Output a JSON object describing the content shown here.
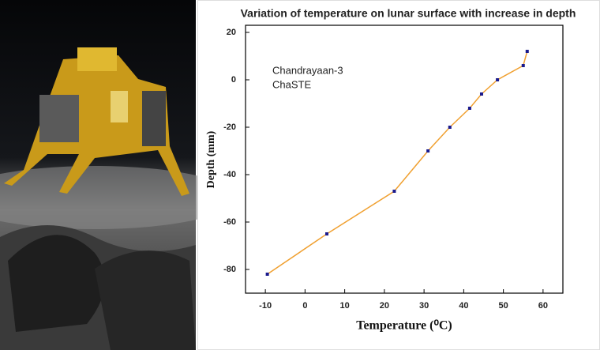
{
  "chart_data": {
    "type": "line",
    "title": "Variation of temperature on lunar surface with increase in depth",
    "annotations": [
      "Chandrayaan-3",
      "ChaSTE"
    ],
    "x_label": "Temperature (⁰C)",
    "y_label": "Depth (mm)",
    "x": [
      -9.5,
      5.5,
      22.5,
      31,
      36.5,
      41.5,
      44.5,
      48.5,
      55,
      56
    ],
    "values": [
      -82,
      -65,
      -47,
      -30,
      -20,
      -12,
      -6,
      0,
      6,
      12
    ],
    "color": "#f0a030",
    "marker_color": "#1a1a8c",
    "xlim": [
      -15,
      65
    ],
    "xticks": [
      -10,
      0,
      10,
      20,
      30,
      40,
      50,
      60
    ],
    "ylim": [
      -90,
      23
    ],
    "yticks": [
      -80,
      -60,
      -40,
      -20,
      0,
      20
    ]
  }
}
